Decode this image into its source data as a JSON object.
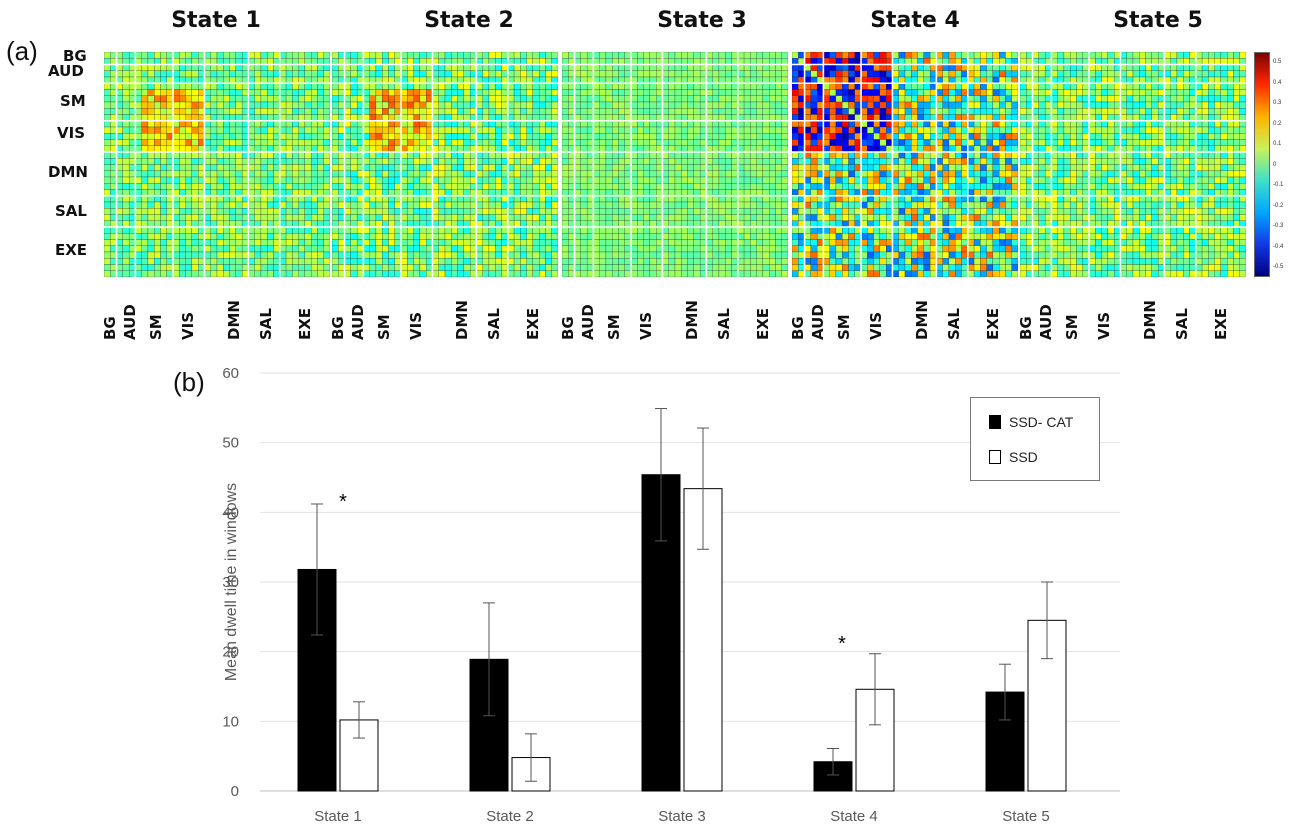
{
  "panel_labels": {
    "a": "(a)",
    "b": "(b)"
  },
  "matrices": {
    "state_titles": [
      "State 1",
      "State 2",
      "State 3",
      "State 4",
      "State 5"
    ],
    "row_labels": [
      "BG",
      "AUD",
      "SM",
      "VIS",
      "DMN",
      "SAL",
      "EXE"
    ],
    "col_labels": [
      "BG",
      "AUD",
      "SM",
      "VIS",
      "DMN",
      "SAL",
      "EXE"
    ],
    "colorbar_ticks": [
      "0.5",
      "0.4",
      "0.3",
      "0.2",
      "0.1",
      "0",
      "-0.1",
      "-0.2",
      "-0.3",
      "-0.4",
      "-0.5"
    ],
    "colorbar_range": [
      -0.5,
      0.5
    ]
  },
  "chart_data": {
    "type": "bar",
    "categories": [
      "State 1",
      "State 2",
      "State 3",
      "State 4",
      "State 5"
    ],
    "series": [
      {
        "name": "SSD- CAT",
        "values": [
          31.8,
          18.9,
          45.4,
          4.2,
          14.2
        ],
        "errors": [
          9.4,
          8.1,
          9.5,
          1.9,
          4.0
        ],
        "color": "#000000"
      },
      {
        "name": "SSD",
        "values": [
          10.2,
          4.8,
          43.4,
          14.6,
          24.5
        ],
        "errors": [
          2.6,
          3.4,
          8.7,
          5.1,
          5.5
        ],
        "color": "#ffffff"
      }
    ],
    "ylabel": "Mean dwell time in windows",
    "xlabel": "",
    "ylim": [
      0,
      60
    ],
    "yticks": [
      0,
      10,
      20,
      30,
      40,
      50,
      60
    ],
    "grid": true,
    "legend_position": "top-right",
    "significance": [
      {
        "category": "State 1",
        "series": "SSD- CAT",
        "label": "*"
      },
      {
        "category": "State 4",
        "series": "SSD",
        "label": "*"
      }
    ]
  }
}
